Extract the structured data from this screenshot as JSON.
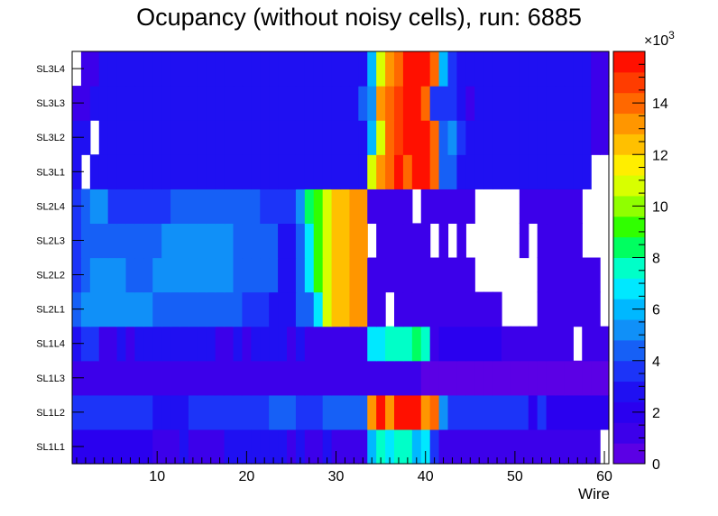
{
  "chart_data": {
    "type": "heatmap",
    "title": "Ocupancy (without noisy cells), run: 6885",
    "xlabel": "Wire",
    "xlim": [
      0.5,
      60.5
    ],
    "x_ticks": [
      10,
      20,
      30,
      40,
      50,
      60
    ],
    "y_categories": [
      "SL1L1",
      "SL1L2",
      "SL1L3",
      "SL1L4",
      "SL2L1",
      "SL2L2",
      "SL2L3",
      "SL2L4",
      "SL3L1",
      "SL3L2",
      "SL3L3",
      "SL3L4"
    ],
    "zlim": [
      0,
      16000
    ],
    "z_exponent_label": "×10",
    "z_exponent_power": "3",
    "z_ticks": [
      0,
      2,
      4,
      6,
      8,
      10,
      12,
      14
    ],
    "palette": [
      "#5b00e5",
      "#3c00ea",
      "#2a00ef",
      "#1f10f2",
      "#1c34f8",
      "#1660f6",
      "#1090f8",
      "#00b8ff",
      "#00e8ff",
      "#00ffc8",
      "#00ff60",
      "#30ff00",
      "#90ff00",
      "#d8ff00",
      "#ffee00",
      "#ffc000",
      "#ff9600",
      "#ff6800",
      "#ff3c00",
      "#ff1000"
    ],
    "rows": {
      "SL1L1": [
        1.8,
        1.8,
        1.8,
        1.8,
        1.8,
        1.8,
        1.8,
        1.8,
        1.8,
        1.5,
        1.5,
        1.5,
        2.6,
        1.0,
        1.0,
        1.0,
        1.0,
        2.4,
        2.4,
        2.4,
        2.4,
        2.4,
        2.4,
        2.4,
        1.5,
        2.4,
        1.5,
        1.0,
        2.4,
        1.5,
        1.5,
        1.5,
        1.5,
        6.0,
        7.5,
        6.5,
        7.5,
        7.5,
        6.0,
        6.5,
        3.5,
        1.5,
        1.5,
        1.5,
        1.5,
        1.5,
        1.5,
        1.5,
        1.5,
        1.0,
        1.5,
        1.5,
        1.5,
        1.5,
        1.5,
        1.0,
        1.5,
        1.5,
        1.5,
        null
      ],
      "SL1L2": [
        3.2,
        3.2,
        3.2,
        3.2,
        3.2,
        3.2,
        3.2,
        3.2,
        3.2,
        2.6,
        2.6,
        2.6,
        2.6,
        3.2,
        3.2,
        3.2,
        3.2,
        3.2,
        3.2,
        3.2,
        3.2,
        3.2,
        4.3,
        4.3,
        4.3,
        3.2,
        3.2,
        3.2,
        4.3,
        4.3,
        4.3,
        4.3,
        4.3,
        13.0,
        15.5,
        13.0,
        16.0,
        16.0,
        16.0,
        13.0,
        14.0,
        5.0,
        3.2,
        3.2,
        3.2,
        3.2,
        3.2,
        3.2,
        3.2,
        3.2,
        3.2,
        2.2,
        3.2,
        2.2,
        2.2,
        2.2,
        2.2,
        2.2,
        2.2,
        2.2
      ],
      "SL1L3": [
        1.4,
        1.4,
        1.4,
        1.4,
        1.4,
        1.4,
        1.4,
        1.4,
        1.4,
        1.4,
        0.9,
        1.4,
        1.4,
        1.4,
        1.4,
        1.4,
        1.4,
        1.4,
        1.4,
        1.4,
        1.4,
        1.4,
        1.4,
        1.4,
        1.4,
        1.4,
        1.4,
        1.4,
        1.4,
        1.4,
        1.4,
        1.4,
        1.4,
        1.4,
        1.4,
        1.4,
        1.4,
        1.4,
        1.4,
        0.4,
        0.4,
        0.4,
        0.4,
        0.4,
        0.4,
        0.4,
        0.4,
        0.4,
        0.4,
        0.4,
        0.4,
        0.4,
        0.4,
        0.4,
        0.4,
        0.4,
        0.4,
        0.4,
        0.4,
        0.4
      ],
      "SL1L4": [
        2.6,
        3.2,
        3.2,
        1.5,
        1.5,
        2.4,
        1.5,
        2.6,
        2.6,
        2.6,
        2.6,
        2.6,
        2.6,
        2.6,
        2.6,
        2.6,
        1.5,
        1.5,
        2.6,
        1.5,
        2.6,
        2.6,
        2.6,
        2.6,
        1.5,
        2.6,
        1.5,
        1.5,
        1.5,
        1.5,
        1.5,
        1.5,
        1.5,
        6.5,
        6.5,
        7.5,
        7.5,
        7.5,
        8.5,
        7.5,
        1.5,
        2.0,
        2.0,
        2.0,
        2.0,
        2.0,
        2.0,
        2.0,
        1.0,
        1.0,
        1.0,
        1.0,
        1.0,
        1.0,
        1.0,
        1.0,
        null,
        1.0,
        1.5,
        1.5
      ],
      "SL2L1": [
        4.3,
        4.9,
        4.9,
        4.9,
        4.9,
        4.9,
        4.9,
        4.9,
        4.9,
        4.3,
        4.3,
        4.3,
        4.3,
        4.3,
        4.3,
        4.3,
        4.3,
        4.3,
        4.3,
        3.2,
        3.2,
        3.2,
        2.6,
        2.6,
        2.6,
        4.3,
        4.3,
        6.5,
        11.0,
        12.5,
        12.5,
        13.0,
        13.0,
        0.9,
        0.9,
        null,
        0.9,
        0.9,
        0.9,
        0.9,
        0.9,
        0.9,
        0.9,
        0.9,
        0.9,
        0.9,
        0.9,
        0.9,
        null,
        null,
        null,
        null,
        0.9,
        0.9,
        0.9,
        0.9,
        0.9,
        0.9,
        0.9,
        null
      ],
      "SL2L2": [
        3.2,
        4.3,
        4.9,
        4.9,
        4.9,
        4.9,
        4.3,
        4.3,
        4.3,
        4.9,
        4.9,
        4.9,
        4.9,
        4.9,
        4.9,
        4.9,
        4.9,
        4.9,
        4.3,
        4.3,
        4.3,
        4.3,
        4.3,
        2.6,
        2.6,
        4.3,
        6.5,
        9.5,
        11.0,
        12.5,
        12.5,
        13.0,
        13.0,
        0.9,
        0.9,
        0.9,
        0.9,
        0.9,
        0.9,
        0.9,
        0.9,
        0.9,
        0.9,
        0.9,
        0.9,
        null,
        null,
        null,
        null,
        null,
        null,
        null,
        0.9,
        0.9,
        0.9,
        0.9,
        0.9,
        0.9,
        0.9,
        null
      ],
      "SL2L3": [
        3.2,
        4.3,
        4.3,
        4.3,
        4.3,
        4.3,
        4.3,
        4.3,
        4.3,
        4.3,
        4.9,
        4.9,
        4.9,
        4.9,
        4.9,
        4.9,
        4.9,
        4.9,
        4.3,
        4.3,
        4.3,
        4.3,
        4.3,
        2.6,
        2.6,
        4.3,
        6.5,
        9.5,
        11.0,
        12.5,
        12.5,
        13.0,
        13.0,
        null,
        0.9,
        0.9,
        0.9,
        0.9,
        0.9,
        0.9,
        null,
        0.9,
        null,
        0.9,
        null,
        null,
        null,
        null,
        null,
        null,
        0.9,
        null,
        0.9,
        0.9,
        0.9,
        0.9,
        0.9,
        null,
        null,
        null
      ],
      "SL2L4": [
        3.2,
        4.3,
        4.9,
        4.9,
        3.2,
        3.2,
        3.2,
        3.2,
        3.2,
        3.2,
        3.2,
        4.3,
        4.3,
        4.3,
        4.3,
        4.3,
        4.3,
        4.3,
        4.3,
        4.3,
        4.3,
        3.2,
        3.2,
        3.2,
        3.2,
        5.5,
        8.0,
        9.5,
        11.0,
        12.5,
        12.5,
        13.0,
        13.0,
        0.9,
        0.9,
        0.9,
        0.9,
        0.9,
        null,
        0.9,
        0.9,
        0.9,
        0.9,
        0.9,
        0.9,
        null,
        null,
        null,
        null,
        null,
        0.9,
        0.9,
        0.9,
        0.9,
        0.9,
        0.9,
        0.9,
        null,
        null,
        null
      ],
      "SL3L1": [
        2.4,
        null,
        2.4,
        2.4,
        2.4,
        2.4,
        2.4,
        2.4,
        2.4,
        2.4,
        2.4,
        2.4,
        2.4,
        2.4,
        2.4,
        2.4,
        2.4,
        2.4,
        2.4,
        2.4,
        2.4,
        2.6,
        2.6,
        2.6,
        2.6,
        2.6,
        2.6,
        2.6,
        2.6,
        2.6,
        2.6,
        2.6,
        2.6,
        11.0,
        13.5,
        14.0,
        16.0,
        14.0,
        17.0,
        17.0,
        14.0,
        4.3,
        4.3,
        2.6,
        2.6,
        2.6,
        2.4,
        2.4,
        2.4,
        2.4,
        2.4,
        2.4,
        2.4,
        2.4,
        2.4,
        2.4,
        2.4,
        2.4,
        null,
        null
      ],
      "SL3L2": [
        2.4,
        2.4,
        null,
        2.4,
        2.4,
        2.4,
        2.4,
        2.4,
        2.4,
        2.4,
        2.4,
        2.4,
        2.4,
        2.4,
        2.4,
        2.4,
        2.4,
        2.4,
        2.4,
        2.4,
        2.4,
        2.4,
        2.6,
        2.6,
        2.6,
        2.6,
        2.6,
        2.6,
        2.6,
        2.6,
        2.6,
        2.6,
        2.6,
        6.0,
        11.0,
        14.0,
        15.0,
        16.0,
        17.0,
        17.0,
        14.0,
        4.3,
        5.5,
        3.2,
        2.4,
        2.4,
        2.4,
        2.4,
        2.4,
        2.4,
        2.4,
        2.4,
        2.4,
        2.4,
        2.4,
        2.4,
        2.4,
        2.4,
        1.0,
        1.0
      ],
      "SL3L3": [
        1.0,
        1.0,
        2.4,
        2.4,
        2.4,
        2.4,
        2.4,
        2.4,
        2.4,
        2.4,
        2.4,
        2.4,
        2.4,
        2.4,
        2.4,
        2.4,
        2.4,
        2.4,
        2.4,
        2.4,
        2.4,
        2.4,
        2.4,
        2.4,
        2.6,
        2.6,
        2.6,
        2.6,
        2.6,
        2.4,
        2.4,
        2.4,
        4.3,
        5.5,
        13.0,
        14.0,
        15.0,
        16.0,
        17.0,
        14.0,
        3.2,
        3.2,
        3.2,
        2.4,
        1.0,
        2.4,
        2.4,
        2.4,
        2.4,
        2.4,
        2.4,
        2.4,
        2.4,
        2.4,
        2.4,
        2.4,
        2.4,
        2.4,
        1.0,
        1.0
      ],
      "SL3L4": [
        null,
        1.0,
        1.0,
        2.4,
        2.4,
        2.4,
        2.4,
        2.4,
        2.4,
        2.4,
        2.4,
        2.4,
        2.4,
        2.4,
        2.4,
        2.4,
        2.4,
        2.4,
        2.4,
        2.4,
        2.4,
        2.4,
        2.4,
        2.4,
        2.4,
        2.4,
        2.4,
        2.4,
        2.4,
        2.4,
        2.6,
        2.6,
        2.6,
        6.0,
        11.0,
        13.5,
        14.0,
        16.0,
        17.0,
        17.0,
        14.0,
        6.0,
        3.2,
        2.4,
        2.4,
        2.4,
        2.4,
        2.4,
        2.4,
        2.4,
        2.4,
        2.4,
        2.4,
        2.4,
        2.4,
        2.4,
        2.4,
        2.4,
        1.0,
        1.0
      ]
    }
  }
}
